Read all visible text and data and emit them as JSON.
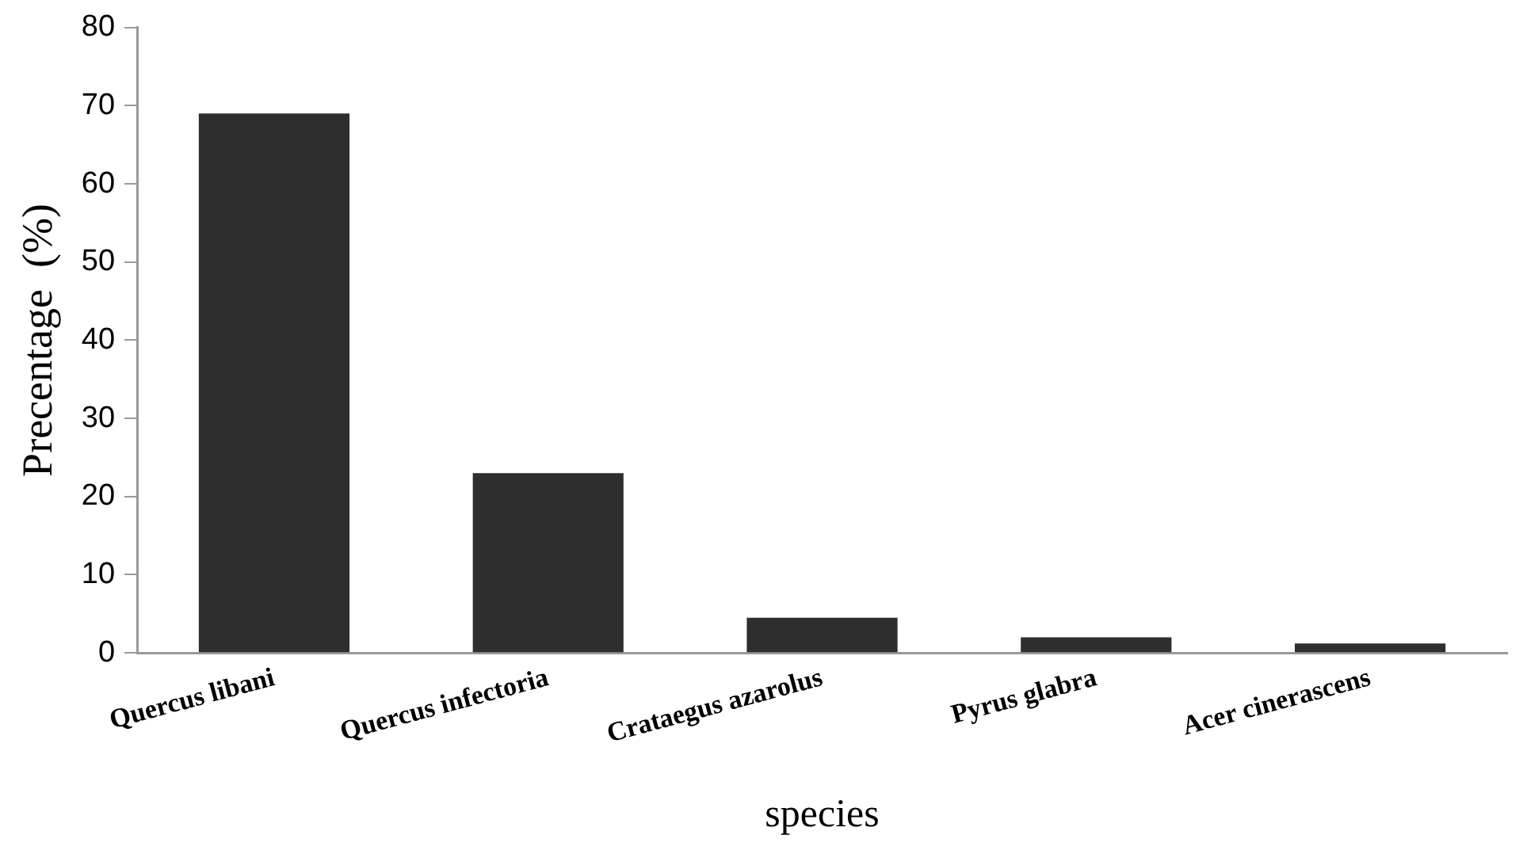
{
  "chart_data": {
    "type": "bar",
    "xlabel": "species",
    "ylabel": "Precentage  (%)",
    "categories": [
      "Quercus libani",
      "Quercus infectoria",
      "Crataegus azarolus",
      "Pyrus glabra",
      "Acer cinerascens"
    ],
    "values": [
      69,
      23,
      4.5,
      2,
      1.2
    ],
    "color": "#2e2e2e",
    "ylim": [
      0,
      80
    ],
    "yticks": [
      0,
      10,
      20,
      30,
      40,
      50,
      60,
      70,
      80
    ],
    "grid": false,
    "legend": false
  }
}
